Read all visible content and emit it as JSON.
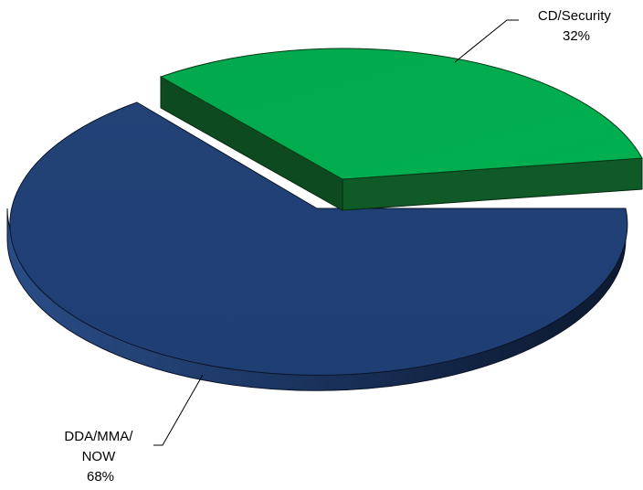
{
  "chart_data": {
    "type": "pie",
    "style": "3d-exploded",
    "categories": [
      "CD/Security",
      "DDA/MMA/NOW"
    ],
    "values": [
      32,
      68
    ],
    "labels": [
      {
        "lines": [
          "CD/Security",
          "32%"
        ]
      },
      {
        "lines": [
          "DDA/MMA/",
          "NOW",
          "68%"
        ]
      }
    ],
    "colors": {
      "cd_security": "#00a84f",
      "dda_mma_now": "#1f3f78"
    },
    "title": "",
    "legend": "none"
  }
}
